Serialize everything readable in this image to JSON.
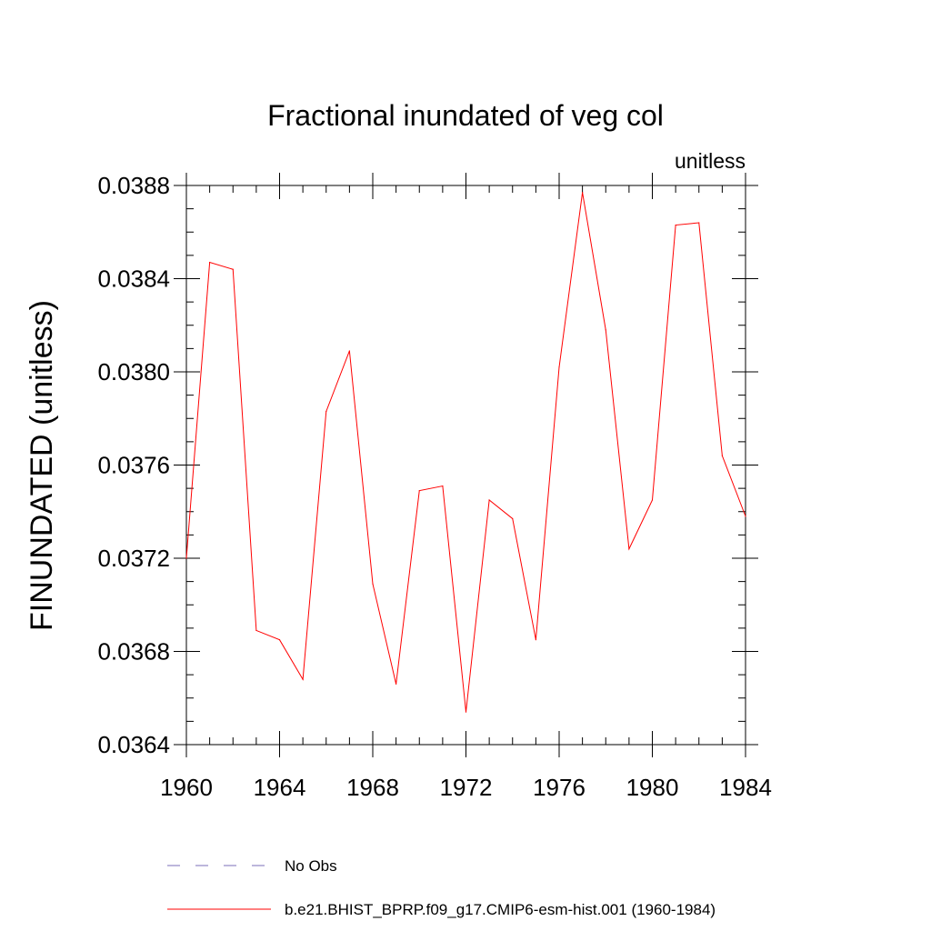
{
  "chart_data": {
    "type": "line",
    "title": "Fractional inundated of veg col",
    "units_label": "unitless",
    "xlabel": "",
    "ylabel": "FINUNDATED  (unitless)",
    "xlim": [
      1960,
      1984
    ],
    "ylim": [
      0.0364,
      0.0388
    ],
    "x_ticks": [
      "1960",
      "1964",
      "1968",
      "1972",
      "1976",
      "1980",
      "1984"
    ],
    "y_ticks": [
      "0.0364",
      "0.0368",
      "0.0372",
      "0.0376",
      "0.0380",
      "0.0384",
      "0.0388"
    ],
    "series": [
      {
        "name": "b.e21.BHIST_BPRP.f09_g17.CMIP6-esm-hist.001 (1960-1984)",
        "color": "#ff0000",
        "x": [
          1960,
          1961,
          1962,
          1963,
          1964,
          1965,
          1966,
          1967,
          1968,
          1969,
          1970,
          1971,
          1972,
          1973,
          1974,
          1975,
          1976,
          1977,
          1978,
          1979,
          1980,
          1981,
          1982,
          1983,
          1984
        ],
        "values": [
          0.0372,
          0.03847,
          0.03844,
          0.03689,
          0.03685,
          0.03668,
          0.03783,
          0.03809,
          0.03709,
          0.03666,
          0.03749,
          0.03751,
          0.03654,
          0.03745,
          0.03737,
          0.03685,
          0.03802,
          0.03877,
          0.03818,
          0.03724,
          0.03745,
          0.03863,
          0.03864,
          0.03764,
          0.03738
        ]
      }
    ],
    "legend": [
      {
        "label": "No Obs",
        "color": "#7b6fb8",
        "style": "dashed"
      },
      {
        "label": "b.e21.BHIST_BPRP.f09_g17.CMIP6-esm-hist.001 (1960-1984)",
        "color": "#ff0000",
        "style": "solid"
      }
    ]
  }
}
